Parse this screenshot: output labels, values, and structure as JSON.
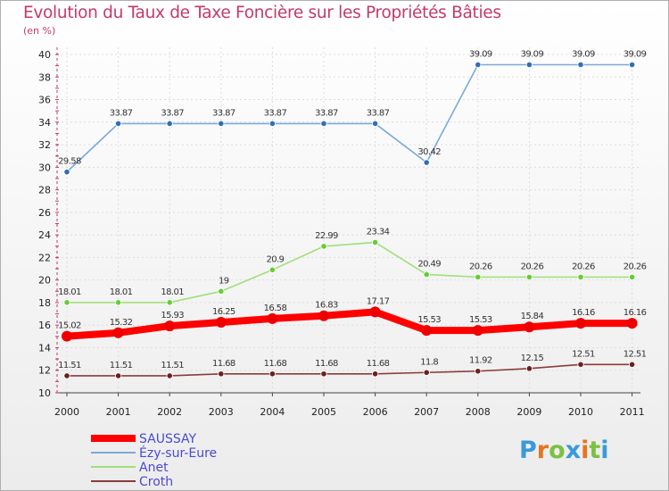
{
  "chart_data": {
    "type": "line",
    "title": "Evolution du Taux de Taxe Foncière sur les Propriétés Bâties",
    "ylabel": "(en %)",
    "xlabel": "",
    "ylim": [
      10,
      40
    ],
    "ytick_step": 2,
    "x": [
      "2000",
      "2001",
      "2002",
      "2003",
      "2004",
      "2005",
      "2006",
      "2007",
      "2008",
      "2009",
      "2010",
      "2011"
    ],
    "series": [
      {
        "name": "SAUSSAY",
        "color": "#ff0000",
        "marker_color": "#ee0000",
        "values": [
          15.02,
          15.32,
          15.93,
          16.25,
          16.58,
          16.83,
          17.17,
          15.53,
          15.53,
          15.84,
          16.16,
          16.16
        ],
        "labels": [
          "15.02",
          "15.32",
          "15.93",
          "16.25",
          "16.58",
          "16.83",
          "17.17",
          "15.53",
          "15.53",
          "15.84",
          "16.16",
          "16.16"
        ]
      },
      {
        "name": "Ézy-sur-Eure",
        "color": "#7aaad8",
        "marker_color": "#2f6fb4",
        "values": [
          29.58,
          33.87,
          33.87,
          33.87,
          33.87,
          33.87,
          33.87,
          30.42,
          39.09,
          39.09,
          39.09,
          39.09
        ],
        "labels": [
          "29.58",
          "33.87",
          "33.87",
          "33.87",
          "33.87",
          "33.87",
          "33.87",
          "30.42",
          "39.09",
          "39.09",
          "39.09",
          "39.09"
        ]
      },
      {
        "name": "Anet",
        "color": "#9fe07a",
        "marker_color": "#66cc33",
        "values": [
          18.01,
          18.01,
          18.01,
          19,
          20.9,
          22.99,
          23.34,
          20.49,
          20.26,
          20.26,
          20.26,
          20.26
        ],
        "labels": [
          "18.01",
          "18.01",
          "18.01",
          "19",
          "20.9",
          "22.99",
          "23.34",
          "20.49",
          "20.26",
          "20.26",
          "20.26",
          "20.26"
        ]
      },
      {
        "name": "Croth",
        "color": "#8b3a3a",
        "marker_color": "#6b1f1f",
        "values": [
          11.51,
          11.51,
          11.51,
          11.68,
          11.68,
          11.68,
          11.68,
          11.8,
          11.92,
          12.15,
          12.51,
          12.51
        ],
        "labels": [
          "11.51",
          "11.51",
          "11.51",
          "11.68",
          "11.68",
          "11.68",
          "11.68",
          "11.8",
          "11.92",
          "12.15",
          "12.51",
          "12.51"
        ]
      }
    ],
    "legend": "bottom-left"
  },
  "logo": {
    "letters": [
      "P",
      "r",
      "o",
      "x",
      "i",
      "t",
      "i"
    ],
    "colors": [
      "#3a9ad9",
      "#e8741e",
      "#7ac143",
      "#3a9ad9",
      "#e8741e",
      "#7ac143",
      "#3a9ad9"
    ]
  }
}
